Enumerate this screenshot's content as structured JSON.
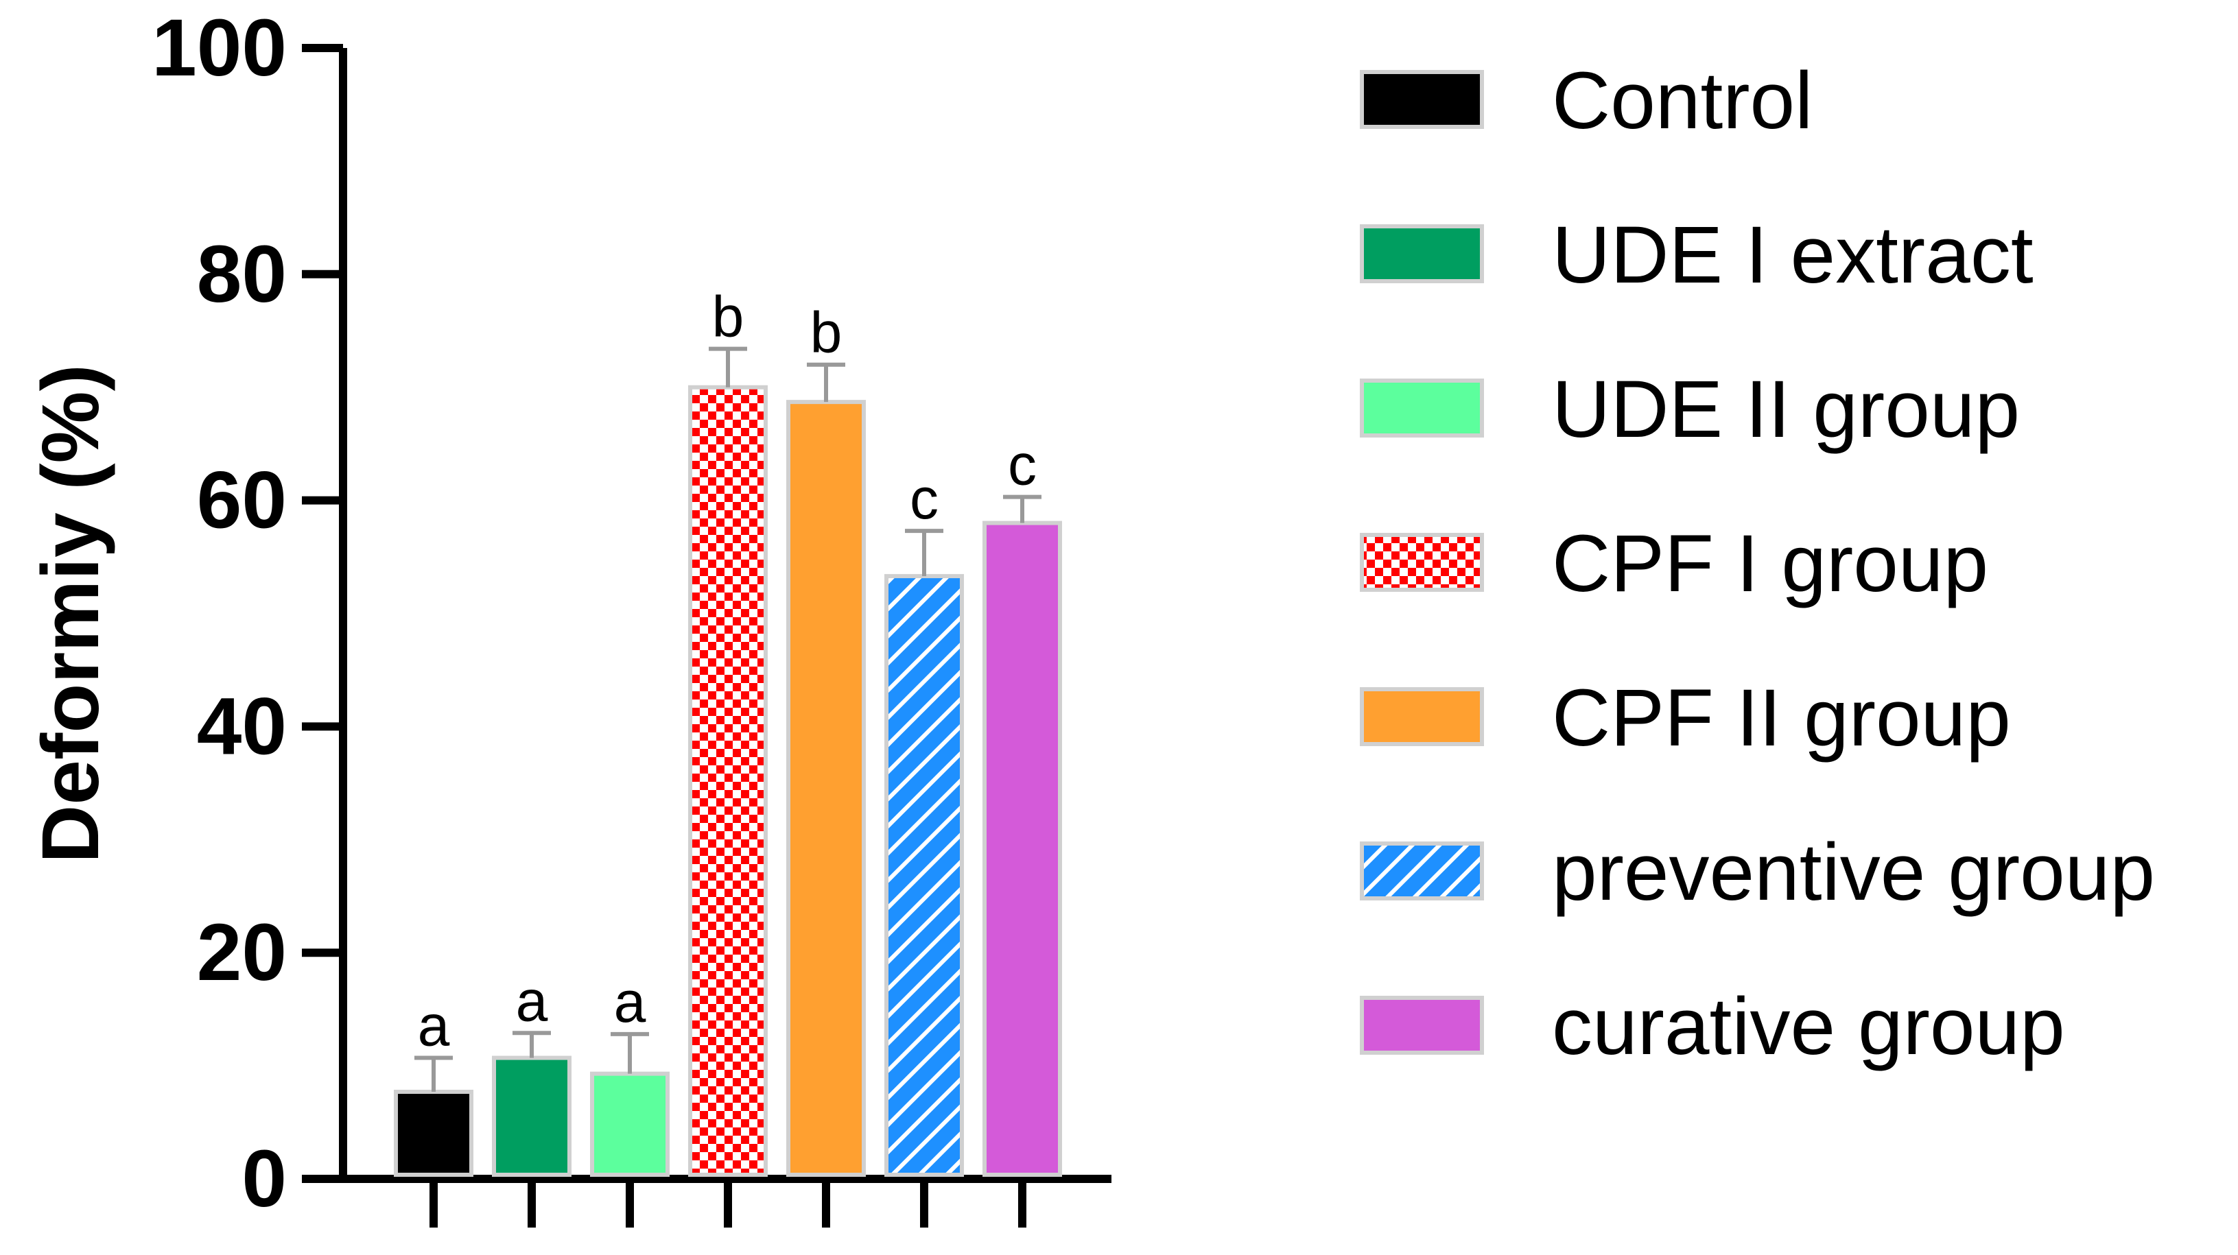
{
  "chart_data": {
    "type": "bar",
    "title": "",
    "xlabel": "",
    "ylabel": "Deformiy (%)",
    "ylim": [
      0,
      100
    ],
    "yticks": [
      "0",
      "20",
      "40",
      "60",
      "80",
      "100"
    ],
    "categories": [
      "Control",
      "UDE I extract",
      "UDE II group",
      "CPF I group",
      "CPF II group",
      "preventive group",
      "curative group"
    ],
    "values": [
      7.7,
      10.7,
      9.3,
      70.0,
      68.7,
      53.3,
      58.0
    ],
    "errors": [
      3.0,
      2.2,
      3.5,
      3.4,
      3.3,
      4.0,
      2.3
    ],
    "significance": [
      "a",
      "a",
      "a",
      "b",
      "b",
      "c",
      "c"
    ],
    "colors": [
      "#000000",
      "#009e60",
      "#5cff9d",
      "#ff0000",
      "#ffa030",
      "#1e90ff",
      "#d45ad9"
    ],
    "patterns": [
      "solid",
      "solid",
      "solid",
      "checker",
      "solid",
      "diagonal",
      "solid"
    ],
    "legend_position": "right"
  }
}
